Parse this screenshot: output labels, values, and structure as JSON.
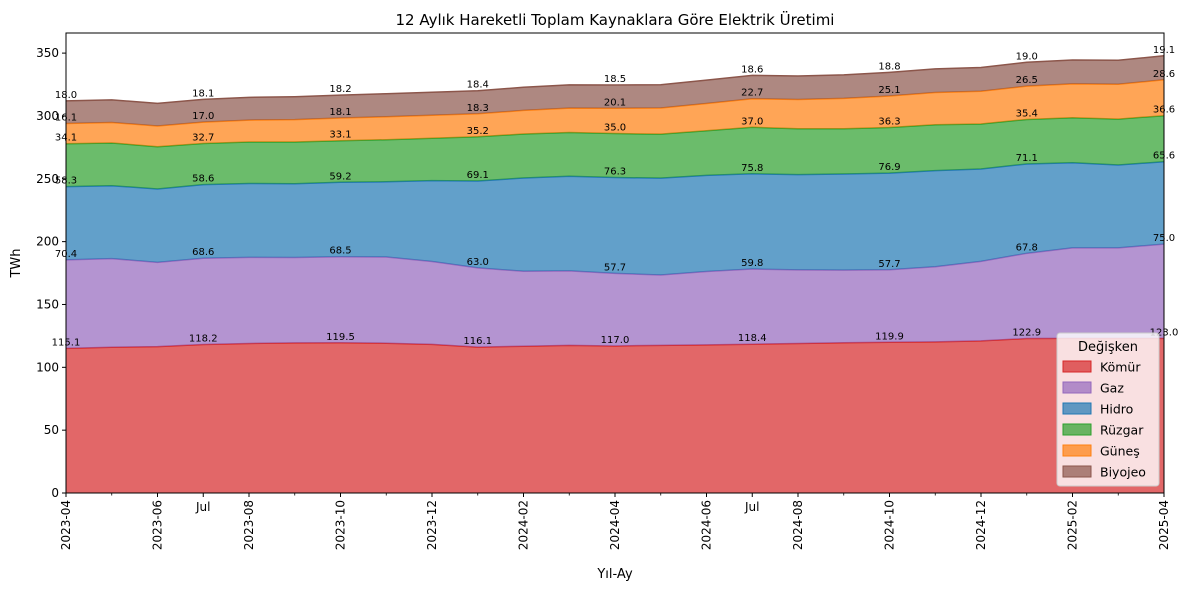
{
  "chart_data": {
    "type": "area",
    "stacked": true,
    "title": "12 Aylık Hareketli Toplam Kaynaklara Göre Elektrik Üretimi",
    "xlabel": "Yıl-Ay",
    "ylabel": "TWh",
    "ylim": [
      0,
      366
    ],
    "yticks": [
      0,
      50,
      100,
      150,
      200,
      250,
      300,
      350
    ],
    "x": [
      "2023-04",
      "2023-05",
      "2023-06",
      "2023-07",
      "2023-08",
      "2023-09",
      "2023-10",
      "2023-11",
      "2023-12",
      "2024-01",
      "2024-02",
      "2024-03",
      "2024-04",
      "2024-05",
      "2024-06",
      "2024-07",
      "2024-08",
      "2024-09",
      "2024-10",
      "2024-11",
      "2024-12",
      "2025-01",
      "2025-02",
      "2025-03",
      "2025-04"
    ],
    "xtick_labels": [
      {
        "index": 0,
        "label": "2023-04"
      },
      {
        "index": 2,
        "label": "2023-06"
      },
      {
        "index": 3,
        "label": "Jul"
      },
      {
        "index": 4,
        "label": "2023-08"
      },
      {
        "index": 6,
        "label": "2023-10"
      },
      {
        "index": 8,
        "label": "2023-12"
      },
      {
        "index": 10,
        "label": "2024-02"
      },
      {
        "index": 12,
        "label": "2024-04"
      },
      {
        "index": 14,
        "label": "2024-06"
      },
      {
        "index": 15,
        "label": "Jul"
      },
      {
        "index": 16,
        "label": "2024-08"
      },
      {
        "index": 18,
        "label": "2024-10"
      },
      {
        "index": 20,
        "label": "2024-12"
      },
      {
        "index": 22,
        "label": "2025-02"
      },
      {
        "index": 24,
        "label": "2025-04"
      }
    ],
    "series": [
      {
        "name": "Kömür",
        "color": "#d62728",
        "values": [
          115.1,
          116.0,
          116.5,
          118.2,
          119.0,
          119.4,
          119.5,
          119.2,
          118.3,
          116.1,
          116.8,
          117.5,
          117.0,
          117.5,
          117.9,
          118.4,
          119.0,
          119.5,
          119.9,
          120.2,
          121.0,
          122.9,
          123.0,
          123.0,
          123.0
        ]
      },
      {
        "name": "Gaz",
        "color": "#9467bd",
        "values": [
          70.4,
          70.5,
          67.0,
          68.6,
          68.5,
          68.0,
          68.5,
          68.6,
          65.9,
          63.0,
          59.6,
          59.2,
          57.7,
          56.0,
          58.3,
          59.8,
          58.5,
          57.8,
          57.7,
          59.8,
          63.3,
          67.8,
          72.0,
          72.0,
          75.0
        ]
      },
      {
        "name": "Hidro",
        "color": "#1f77b4",
        "values": [
          58.3,
          58.0,
          58.4,
          58.6,
          58.8,
          58.7,
          59.2,
          59.8,
          64.3,
          69.1,
          74.2,
          75.3,
          76.3,
          77.0,
          76.5,
          75.8,
          75.8,
          76.5,
          76.9,
          76.5,
          73.5,
          71.1,
          67.8,
          66.0,
          65.6
        ]
      },
      {
        "name": "Rüzgar",
        "color": "#2ca02c",
        "values": [
          34.1,
          34.0,
          33.6,
          32.7,
          33.0,
          33.2,
          33.1,
          33.5,
          33.8,
          35.2,
          35.0,
          34.8,
          35.0,
          35.0,
          35.5,
          37.0,
          36.5,
          36.0,
          36.3,
          36.5,
          35.8,
          35.4,
          35.8,
          36.5,
          36.6
        ]
      },
      {
        "name": "Güneş",
        "color": "#ff7f0e",
        "values": [
          16.1,
          16.3,
          16.5,
          17.0,
          17.4,
          17.8,
          18.1,
          18.3,
          18.3,
          18.3,
          18.8,
          19.4,
          20.1,
          20.8,
          21.7,
          22.7,
          23.3,
          24.2,
          25.1,
          25.7,
          26.1,
          26.5,
          26.9,
          27.7,
          28.6
        ]
      },
      {
        "name": "Biyojeo",
        "color": "#8c564b",
        "values": [
          18.0,
          18.0,
          18.0,
          18.1,
          18.1,
          18.2,
          18.2,
          18.3,
          18.3,
          18.4,
          18.4,
          18.5,
          18.5,
          18.5,
          18.6,
          18.6,
          18.7,
          18.7,
          18.8,
          18.8,
          18.9,
          19.0,
          19.0,
          19.1,
          19.1
        ]
      }
    ],
    "label_indices": [
      0,
      3,
      6,
      9,
      12,
      15,
      18,
      21,
      24
    ],
    "legend": {
      "title": "Değişken",
      "position": "lower right"
    },
    "grid": false
  }
}
